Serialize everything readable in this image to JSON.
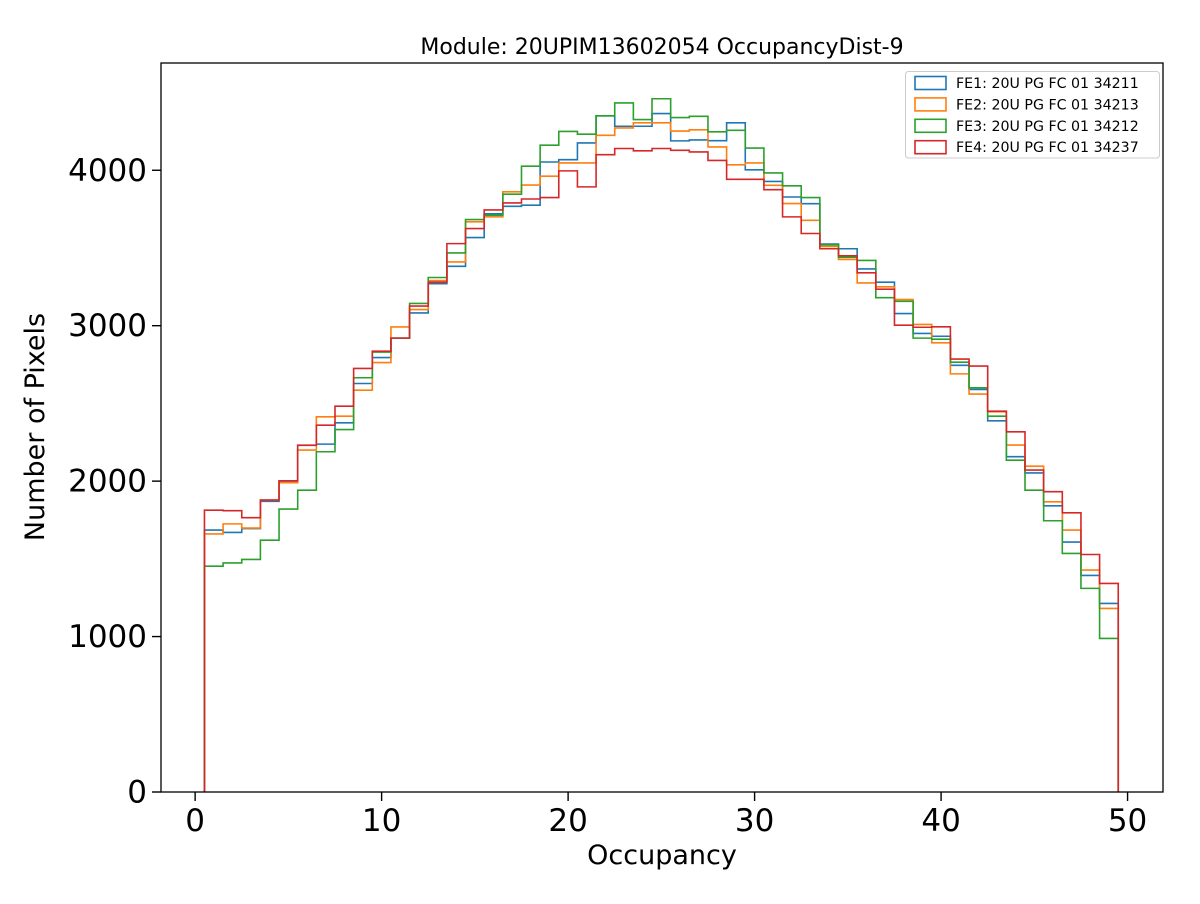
{
  "chart_data": {
    "type": "step-histogram",
    "title": "Module: 20UPIM13602054 OccupancyDist-9",
    "xlabel": "Occupancy",
    "ylabel": "Number of Pixels",
    "bin_start": 0.5,
    "bin_width": 1,
    "n_bins": 49,
    "xlim": [
      -1.83,
      51.9
    ],
    "ylim": [
      0,
      4690
    ],
    "xticks": [
      0,
      10,
      20,
      30,
      40,
      50
    ],
    "yticks": [
      0,
      1000,
      2000,
      3000,
      4000
    ],
    "grid": false,
    "legend_position": "upper right",
    "series": [
      {
        "name": "FE1: 20U PG FC 01 34211",
        "color": "#1f77b4",
        "values": [
          1685,
          1670,
          1695,
          1870,
          2000,
          2230,
          2238,
          2375,
          2628,
          2795,
          2920,
          3082,
          3270,
          3382,
          3567,
          3720,
          3768,
          3775,
          4053,
          4068,
          4176,
          4350,
          4283,
          4283,
          4365,
          4189,
          4195,
          4190,
          4305,
          4003,
          3928,
          3828,
          3785,
          3525,
          3495,
          3365,
          3280,
          3078,
          2950,
          2932,
          2745,
          2590,
          2388,
          2157,
          2053,
          1841,
          1608,
          1393,
          1213
        ]
      },
      {
        "name": "FE2: 20U PG FC 01 34213",
        "color": "#ff7f0e",
        "values": [
          1660,
          1725,
          1698,
          1878,
          1990,
          2200,
          2414,
          2418,
          2585,
          2763,
          2992,
          3104,
          3290,
          3410,
          3668,
          3700,
          3861,
          3905,
          3962,
          4047,
          4047,
          4225,
          4272,
          4305,
          4305,
          4252,
          4260,
          4150,
          4035,
          4047,
          3903,
          3786,
          3678,
          3510,
          3426,
          3275,
          3250,
          3168,
          3008,
          2890,
          2690,
          2560,
          2446,
          2232,
          2096,
          1867,
          1685,
          1428,
          1181
        ]
      },
      {
        "name": "FE3: 20U PG FC 01 34212",
        "color": "#2ca02c",
        "values": [
          1453,
          1474,
          1496,
          1620,
          1820,
          1942,
          2189,
          2332,
          2665,
          2830,
          2920,
          3143,
          3310,
          3468,
          3683,
          3710,
          3846,
          4026,
          4161,
          4250,
          4232,
          4350,
          4433,
          4326,
          4460,
          4339,
          4347,
          4247,
          4257,
          4143,
          3983,
          3900,
          3824,
          3520,
          3440,
          3420,
          3180,
          3157,
          2920,
          2913,
          2765,
          2600,
          2418,
          2135,
          1942,
          1745,
          1535,
          1310,
          988
        ]
      },
      {
        "name": "FE4: 20U PG FC 01 34237",
        "color": "#d62728",
        "values": [
          1813,
          1810,
          1765,
          1878,
          2002,
          2231,
          2360,
          2482,
          2725,
          2836,
          2920,
          3126,
          3280,
          3528,
          3625,
          3745,
          3790,
          3815,
          3824,
          3996,
          3893,
          4100,
          4140,
          4125,
          4140,
          4128,
          4118,
          4063,
          3942,
          3942,
          3875,
          3700,
          3593,
          3495,
          3450,
          3340,
          3235,
          3003,
          2990,
          2993,
          2785,
          2740,
          2450,
          2317,
          2071,
          1932,
          1796,
          1528,
          1342
        ]
      }
    ]
  }
}
